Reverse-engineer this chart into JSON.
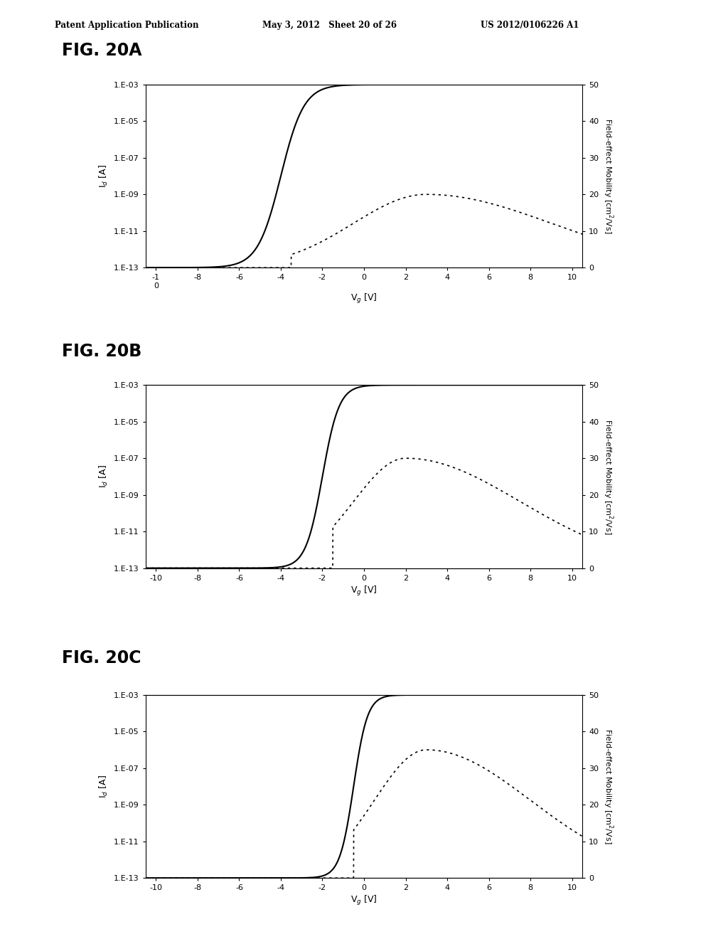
{
  "header_left": "Patent Application Publication",
  "header_mid": "May 3, 2012   Sheet 20 of 26",
  "header_right": "US 2012/0106226 A1",
  "fig_labels": [
    "FIG. 20A",
    "FIG. 20B",
    "FIG. 20C"
  ],
  "bg_color": "#ffffff",
  "panels": [
    {
      "xlim": [
        -10.5,
        10.5
      ],
      "xticks": [
        -10,
        -8,
        -6,
        -4,
        -2,
        0,
        2,
        4,
        6,
        8,
        10
      ],
      "xticklabels_special": true,
      "solid_vth": -4.0,
      "solid_steepness": 1.8,
      "solid_max_log": -3.0,
      "solid_slope_above": 0.15,
      "dotted_vth": -3.5,
      "dotted_peak_x": 3.0,
      "dotted_peak_y": 20,
      "dotted_sigma_l": 3.5,
      "dotted_sigma_r": 6.0
    },
    {
      "xlim": [
        -10.5,
        10.5
      ],
      "xticks": [
        -10,
        -8,
        -6,
        -4,
        -2,
        0,
        2,
        4,
        6,
        8,
        10
      ],
      "xticklabels_special": false,
      "solid_vth": -2.0,
      "solid_steepness": 2.5,
      "solid_max_log": -3.0,
      "solid_slope_above": 0.12,
      "dotted_vth": -1.5,
      "dotted_peak_x": 2.0,
      "dotted_peak_y": 30,
      "dotted_sigma_l": 2.5,
      "dotted_sigma_r": 5.5
    },
    {
      "xlim": [
        -10.5,
        10.5
      ],
      "xticks": [
        -10,
        -8,
        -6,
        -4,
        -2,
        0,
        2,
        4,
        6,
        8,
        10
      ],
      "xticklabels_special": false,
      "solid_vth": -0.5,
      "solid_steepness": 3.0,
      "solid_max_log": -3.0,
      "solid_slope_above": 0.1,
      "dotted_vth": -0.5,
      "dotted_peak_x": 3.0,
      "dotted_peak_y": 35,
      "dotted_sigma_l": 2.5,
      "dotted_sigma_r": 5.0
    }
  ],
  "ylabel_left": "I$_d$ [A]",
  "ylabel_right": "Field-effect Mobility [cm$^2$/Vs]",
  "xlabel": "V$_g$ [V]",
  "ylim_log": [
    1e-13,
    0.001
  ],
  "ylim_right": [
    0,
    50
  ],
  "yticks_log": [
    1e-13,
    1e-11,
    1e-09,
    1e-07,
    1e-05,
    0.001
  ],
  "yticklabels_log": [
    "1.E-13",
    "1.E-11",
    "1.E-09",
    "1.E-07",
    "1.E-05",
    "1.E-03"
  ],
  "yticks_right": [
    0,
    10,
    20,
    30,
    40,
    50
  ]
}
